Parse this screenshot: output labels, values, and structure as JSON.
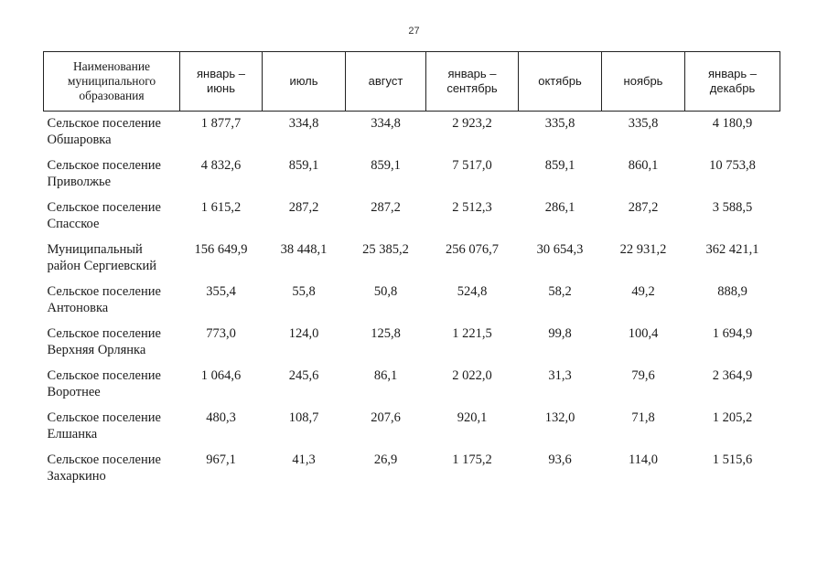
{
  "page_number": "27",
  "table": {
    "columns": [
      "Наименование\nмуниципального\nобразования",
      "январь –\nиюнь",
      "июль",
      "август",
      "январь –\nсентябрь",
      "октябрь",
      "ноябрь",
      "январь –\nдекабрь"
    ],
    "rows": [
      {
        "name": "Сельское поселение\nОбшаровка",
        "values": [
          "1 877,7",
          "334,8",
          "334,8",
          "2 923,2",
          "335,8",
          "335,8",
          "4 180,9"
        ]
      },
      {
        "name": "Сельское поселение\nПриволжье",
        "values": [
          "4 832,6",
          "859,1",
          "859,1",
          "7 517,0",
          "859,1",
          "860,1",
          "10 753,8"
        ]
      },
      {
        "name": "Сельское поселение\nСпасское",
        "values": [
          "1 615,2",
          "287,2",
          "287,2",
          "2 512,3",
          "286,1",
          "287,2",
          "3 588,5"
        ]
      },
      {
        "name": "Муниципальный\nрайон Сергиевский",
        "values": [
          "156 649,9",
          "38 448,1",
          "25 385,2",
          "256 076,7",
          "30 654,3",
          "22 931,2",
          "362 421,1"
        ]
      },
      {
        "name": "Сельское поселение\nАнтоновка",
        "values": [
          "355,4",
          "55,8",
          "50,8",
          "524,8",
          "58,2",
          "49,2",
          "888,9"
        ]
      },
      {
        "name": "Сельское поселение\nВерхняя Орлянка",
        "values": [
          "773,0",
          "124,0",
          "125,8",
          "1 221,5",
          "99,8",
          "100,4",
          "1 694,9"
        ]
      },
      {
        "name": "Сельское поселение\nВоротнее",
        "values": [
          "1 064,6",
          "245,6",
          "86,1",
          "2 022,0",
          "31,3",
          "79,6",
          "2 364,9"
        ]
      },
      {
        "name": "Сельское поселение\nЕлшанка",
        "values": [
          "480,3",
          "108,7",
          "207,6",
          "920,1",
          "132,0",
          "71,8",
          "1 205,2"
        ]
      },
      {
        "name": "Сельское поселение\nЗахаркино",
        "values": [
          "967,1",
          "41,3",
          "26,9",
          "1 175,2",
          "93,6",
          "114,0",
          "1 515,6"
        ]
      }
    ]
  }
}
